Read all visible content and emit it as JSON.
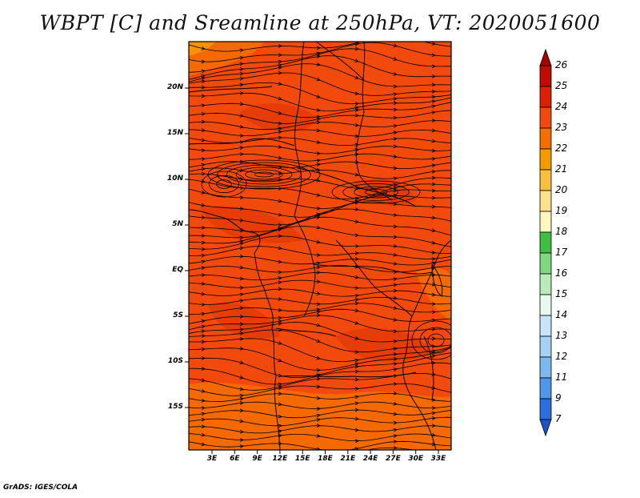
{
  "title": "WBPT [C] and Sreamline at 250hPa, VT: 2020051600",
  "footer": "GrADS: IGES/COLA",
  "map": {
    "lat_labels": [
      "20N",
      "15N",
      "10N",
      "5N",
      "EQ",
      "5S",
      "10S",
      "15S"
    ],
    "lon_labels": [
      "3E",
      "6E",
      "9E",
      "12E",
      "15E",
      "18E",
      "21E",
      "24E",
      "27E",
      "30E",
      "33E"
    ],
    "background_color": "#f24a0c",
    "streamline_color": "#000000",
    "coastline_color": "#000000"
  },
  "colorbar": {
    "levels": [
      "26",
      "25",
      "24",
      "23",
      "22",
      "21",
      "20",
      "19",
      "18",
      "17",
      "16",
      "15",
      "14",
      "13",
      "12",
      "11",
      "9",
      "7"
    ],
    "colors": [
      "#a50000",
      "#c20b00",
      "#dd2000",
      "#f24a0c",
      "#f56e00",
      "#f79a00",
      "#f9c040",
      "#fbe28b",
      "#fff7bd",
      "#3fbf3f",
      "#7fd77f",
      "#b9ebb9",
      "#e8f9f0",
      "#c9e4f8",
      "#a5d1f5",
      "#7cb9f0",
      "#4e97ea",
      "#2a6fde",
      "#1d53c8"
    ]
  }
}
